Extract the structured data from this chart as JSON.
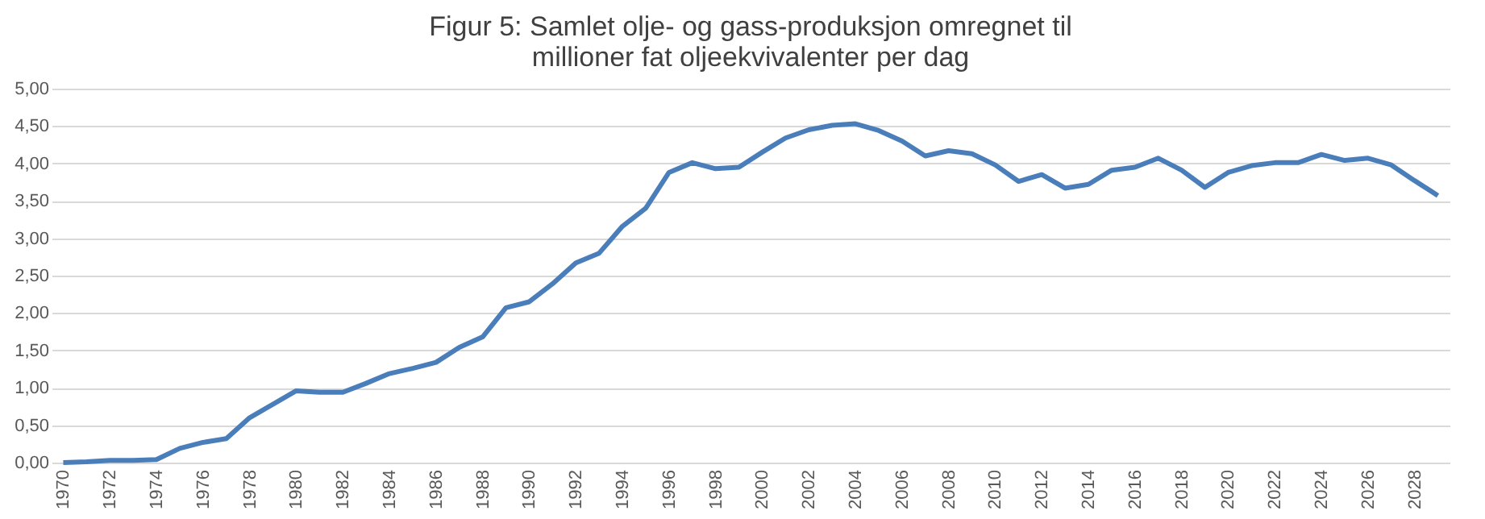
{
  "chart_data": {
    "type": "line",
    "title": "Figur 5: Samlet olje- og gass-produksjon omregnet til millioner fat oljeekvivalenter per dag",
    "x": [
      1970,
      1971,
      1972,
      1973,
      1974,
      1975,
      1976,
      1977,
      1978,
      1979,
      1980,
      1981,
      1982,
      1983,
      1984,
      1985,
      1986,
      1987,
      1988,
      1989,
      1990,
      1991,
      1992,
      1993,
      1994,
      1995,
      1996,
      1997,
      1998,
      1999,
      2000,
      2001,
      2002,
      2003,
      2004,
      2005,
      2006,
      2007,
      2008,
      2009,
      2010,
      2011,
      2012,
      2013,
      2014,
      2015,
      2016,
      2017,
      2018,
      2019,
      2020,
      2021,
      2022,
      2023,
      2024,
      2025,
      2026,
      2027,
      2028,
      2029
    ],
    "series": [
      {
        "color": "#4a7ebb",
        "values": [
          0.0,
          0.01,
          0.03,
          0.03,
          0.04,
          0.19,
          0.27,
          0.32,
          0.6,
          0.78,
          0.96,
          0.94,
          0.94,
          1.06,
          1.19,
          1.26,
          1.34,
          1.54,
          1.68,
          2.07,
          2.15,
          2.39,
          2.67,
          2.8,
          3.16,
          3.4,
          3.88,
          4.01,
          3.93,
          3.95,
          4.15,
          4.34,
          4.45,
          4.51,
          4.53,
          4.44,
          4.3,
          4.1,
          4.17,
          4.13,
          3.98,
          3.76,
          3.85,
          3.67,
          3.72,
          3.91,
          3.95,
          4.07,
          3.91,
          3.68,
          3.88,
          3.97,
          4.01,
          4.01,
          4.12,
          4.04,
          4.07,
          3.98,
          3.77,
          3.57
        ]
      }
    ],
    "xlim": [
      1969.5,
      2029.5
    ],
    "xticks": [
      1970,
      1972,
      1974,
      1976,
      1978,
      1980,
      1982,
      1984,
      1986,
      1988,
      1990,
      1992,
      1994,
      1996,
      1998,
      2000,
      2002,
      2004,
      2006,
      2008,
      2010,
      2012,
      2014,
      2016,
      2018,
      2020,
      2022,
      2024,
      2026,
      2028
    ],
    "ylim": [
      0,
      5
    ],
    "yticks": [
      {
        "value": 0,
        "label": "0,00"
      },
      {
        "value": 0.5,
        "label": "0,50"
      },
      {
        "value": 1,
        "label": "1,00"
      },
      {
        "value": 1.5,
        "label": "1,50"
      },
      {
        "value": 2,
        "label": "2,00"
      },
      {
        "value": 2.5,
        "label": "2,50"
      },
      {
        "value": 3,
        "label": "3,00"
      },
      {
        "value": 3.5,
        "label": "3,50"
      },
      {
        "value": 4,
        "label": "4,00"
      },
      {
        "value": 4.5,
        "label": "4,50"
      },
      {
        "value": 5,
        "label": "5,00"
      }
    ],
    "grid": "y",
    "legend": false,
    "marker": "none",
    "line_style": "solid"
  }
}
